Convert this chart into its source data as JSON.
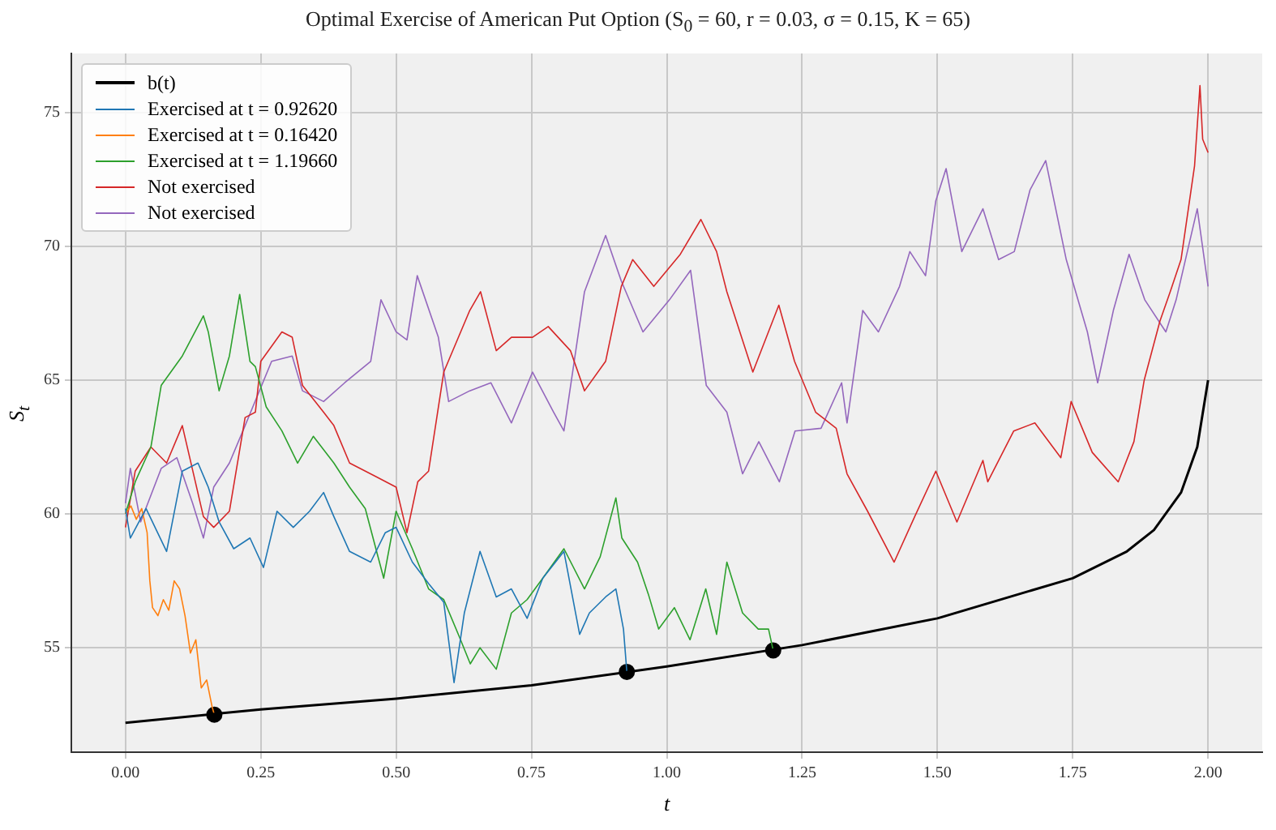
{
  "chart_data": {
    "type": "line",
    "title": "Optimal Exercise of American Put Option (S$_{0}$ = 60, r = 0.03, σ = 0.15, K = 65)",
    "xlabel": "t",
    "ylabel": "S$_{t}$",
    "xlim": [
      -0.1,
      2.1
    ],
    "ylim": [
      51.1,
      77.2
    ],
    "xticks": [
      {
        "value": 0,
        "label": "0.00"
      },
      {
        "value": 0.25,
        "label": "0.25"
      },
      {
        "value": 0.5,
        "label": "0.50"
      },
      {
        "value": 0.75,
        "label": "0.75"
      },
      {
        "value": 1,
        "label": "1.00"
      },
      {
        "value": 1.25,
        "label": "1.25"
      },
      {
        "value": 1.5,
        "label": "1.50"
      },
      {
        "value": 1.75,
        "label": "1.75"
      },
      {
        "value": 2,
        "label": "2.00"
      }
    ],
    "yticks": [
      55,
      60,
      65,
      70,
      75
    ],
    "grid": true,
    "legend": "top left",
    "marker": "none",
    "line_style": "solid",
    "series": [
      {
        "name": "b(t)",
        "color": "#000000",
        "x": [
          0,
          0.25,
          0.5,
          0.75,
          1,
          1.25,
          1.5,
          1.75,
          1.85,
          1.9,
          1.95,
          1.98,
          2
        ],
        "values": [
          52.2,
          52.7,
          53.1,
          53.6,
          54.3,
          55.1,
          56.1,
          57.6,
          58.6,
          59.4,
          60.8,
          62.5,
          65
        ]
      },
      {
        "name": "Exercised at t = 0.92620",
        "color": "#1f77b4",
        "x": [
          0,
          0.009,
          0.038,
          0.076,
          0.105,
          0.134,
          0.153,
          0.173,
          0.2,
          0.23,
          0.255,
          0.28,
          0.31,
          0.34,
          0.366,
          0.385,
          0.414,
          0.453,
          0.48,
          0.5,
          0.53,
          0.56,
          0.588,
          0.607,
          0.626,
          0.655,
          0.685,
          0.713,
          0.742,
          0.771,
          0.81,
          0.839,
          0.857,
          0.887,
          0.906,
          0.92,
          0.9262
        ],
        "values": [
          60.2,
          59.1,
          60.2,
          58.6,
          61.6,
          61.9,
          61,
          59.7,
          58.7,
          59.1,
          58,
          60.1,
          59.5,
          60.1,
          60.8,
          59.9,
          58.6,
          58.2,
          59.3,
          59.5,
          58.2,
          57.4,
          56.7,
          53.7,
          56.3,
          58.6,
          56.9,
          57.2,
          56.1,
          57.6,
          58.6,
          55.5,
          56.3,
          56.9,
          57.2,
          55.7,
          54.1
        ]
      },
      {
        "name": "Exercised at t = 0.16420",
        "color": "#ff7f0e",
        "x": [
          0,
          0.01,
          0.02,
          0.03,
          0.04,
          0.045,
          0.05,
          0.06,
          0.07,
          0.08,
          0.09,
          0.1,
          0.11,
          0.12,
          0.13,
          0.14,
          0.15,
          0.16,
          0.1642
        ],
        "values": [
          60,
          60.3,
          59.8,
          60.2,
          59.3,
          57.5,
          56.5,
          56.2,
          56.8,
          56.4,
          57.5,
          57.2,
          56.2,
          54.8,
          55.3,
          53.5,
          53.8,
          52.8,
          52.5
        ]
      },
      {
        "name": "Exercised at t = 1.19660",
        "color": "#2ca02c",
        "x": [
          0,
          0.018,
          0.047,
          0.066,
          0.105,
          0.144,
          0.153,
          0.173,
          0.192,
          0.211,
          0.23,
          0.24,
          0.26,
          0.289,
          0.318,
          0.347,
          0.385,
          0.414,
          0.443,
          0.477,
          0.5,
          0.53,
          0.56,
          0.588,
          0.617,
          0.637,
          0.655,
          0.685,
          0.713,
          0.742,
          0.771,
          0.81,
          0.848,
          0.877,
          0.906,
          0.917,
          0.946,
          0.966,
          0.985,
          1.014,
          1.043,
          1.072,
          1.092,
          1.111,
          1.14,
          1.169,
          1.188,
          1.1966
        ],
        "values": [
          60,
          61.2,
          62.5,
          64.8,
          65.9,
          67.4,
          66.8,
          64.6,
          65.9,
          68.2,
          65.7,
          65.5,
          64,
          63.1,
          61.9,
          62.9,
          61.9,
          61,
          60.2,
          57.6,
          60.1,
          58.7,
          57.2,
          56.8,
          55.4,
          54.4,
          55,
          54.2,
          56.3,
          56.8,
          57.6,
          58.7,
          57.2,
          58.4,
          60.6,
          59.1,
          58.2,
          57,
          55.7,
          56.5,
          55.3,
          57.2,
          55.5,
          58.2,
          56.3,
          55.7,
          55.7,
          54.9
        ]
      },
      {
        "name": "Not exercised",
        "color": "#d62728",
        "x": [
          0,
          0.018,
          0.047,
          0.076,
          0.105,
          0.144,
          0.163,
          0.192,
          0.221,
          0.24,
          0.25,
          0.289,
          0.308,
          0.327,
          0.366,
          0.385,
          0.414,
          0.462,
          0.5,
          0.52,
          0.54,
          0.56,
          0.588,
          0.636,
          0.656,
          0.685,
          0.713,
          0.752,
          0.781,
          0.822,
          0.848,
          0.887,
          0.916,
          0.937,
          0.976,
          1.025,
          1.063,
          1.092,
          1.111,
          1.159,
          1.207,
          1.236,
          1.275,
          1.313,
          1.333,
          1.371,
          1.42,
          1.458,
          1.497,
          1.536,
          1.584,
          1.593,
          1.641,
          1.68,
          1.728,
          1.747,
          1.786,
          1.834,
          1.863,
          1.882,
          1.911,
          1.93,
          1.95,
          1.975,
          1.985,
          1.99,
          2
        ],
        "values": [
          59.5,
          61.6,
          62.5,
          61.9,
          63.3,
          59.9,
          59.5,
          60.1,
          63.6,
          63.8,
          65.7,
          66.8,
          66.6,
          64.8,
          63.8,
          63.3,
          61.9,
          61.4,
          61,
          59.3,
          61.2,
          61.6,
          65.3,
          67.6,
          68.3,
          66.1,
          66.6,
          66.6,
          67,
          66.1,
          64.6,
          65.7,
          68.5,
          69.5,
          68.5,
          69.7,
          71,
          69.8,
          68.3,
          65.3,
          67.8,
          65.7,
          63.8,
          63.2,
          61.5,
          60.1,
          58.2,
          59.9,
          61.6,
          59.7,
          62,
          61.2,
          63.1,
          63.4,
          62.1,
          64.2,
          62.3,
          61.2,
          62.7,
          65,
          67.2,
          68.3,
          69.5,
          73,
          76,
          74,
          73.5
        ]
      },
      {
        "name": "Not exercised",
        "color": "#9467bd",
        "x": [
          0,
          0.009,
          0.028,
          0.066,
          0.095,
          0.124,
          0.144,
          0.163,
          0.192,
          0.221,
          0.27,
          0.308,
          0.327,
          0.366,
          0.405,
          0.453,
          0.472,
          0.5,
          0.52,
          0.539,
          0.578,
          0.597,
          0.636,
          0.675,
          0.713,
          0.752,
          0.791,
          0.81,
          0.848,
          0.887,
          0.916,
          0.956,
          1.005,
          1.044,
          1.073,
          1.111,
          1.14,
          1.17,
          1.208,
          1.237,
          1.285,
          1.323,
          1.333,
          1.362,
          1.391,
          1.43,
          1.449,
          1.478,
          1.497,
          1.516,
          1.545,
          1.584,
          1.613,
          1.642,
          1.671,
          1.7,
          1.738,
          1.777,
          1.796,
          1.825,
          1.854,
          1.883,
          1.922,
          1.941,
          1.98,
          2
        ],
        "values": [
          60.4,
          61.7,
          59.7,
          61.7,
          62.1,
          60.4,
          59.1,
          61,
          61.9,
          63.3,
          65.7,
          65.9,
          64.6,
          64.2,
          64.9,
          65.7,
          68,
          66.8,
          66.5,
          68.9,
          66.6,
          64.2,
          64.6,
          64.9,
          63.4,
          65.3,
          63.8,
          63.1,
          68.3,
          70.4,
          68.7,
          66.8,
          68,
          69.1,
          64.8,
          63.8,
          61.5,
          62.7,
          61.2,
          63.1,
          63.2,
          64.9,
          63.4,
          67.6,
          66.8,
          68.5,
          69.8,
          68.9,
          71.7,
          72.9,
          69.8,
          71.4,
          69.5,
          69.8,
          72.1,
          73.2,
          69.5,
          66.8,
          64.9,
          67.6,
          69.7,
          68,
          66.8,
          68,
          71.4,
          68.5
        ]
      },
      {
        "type": "scatter",
        "marker": "circle",
        "color": "#000000",
        "x": [
          0.1642,
          0.9262,
          1.1966
        ],
        "values": [
          52.5,
          54.1,
          54.9
        ]
      }
    ]
  }
}
